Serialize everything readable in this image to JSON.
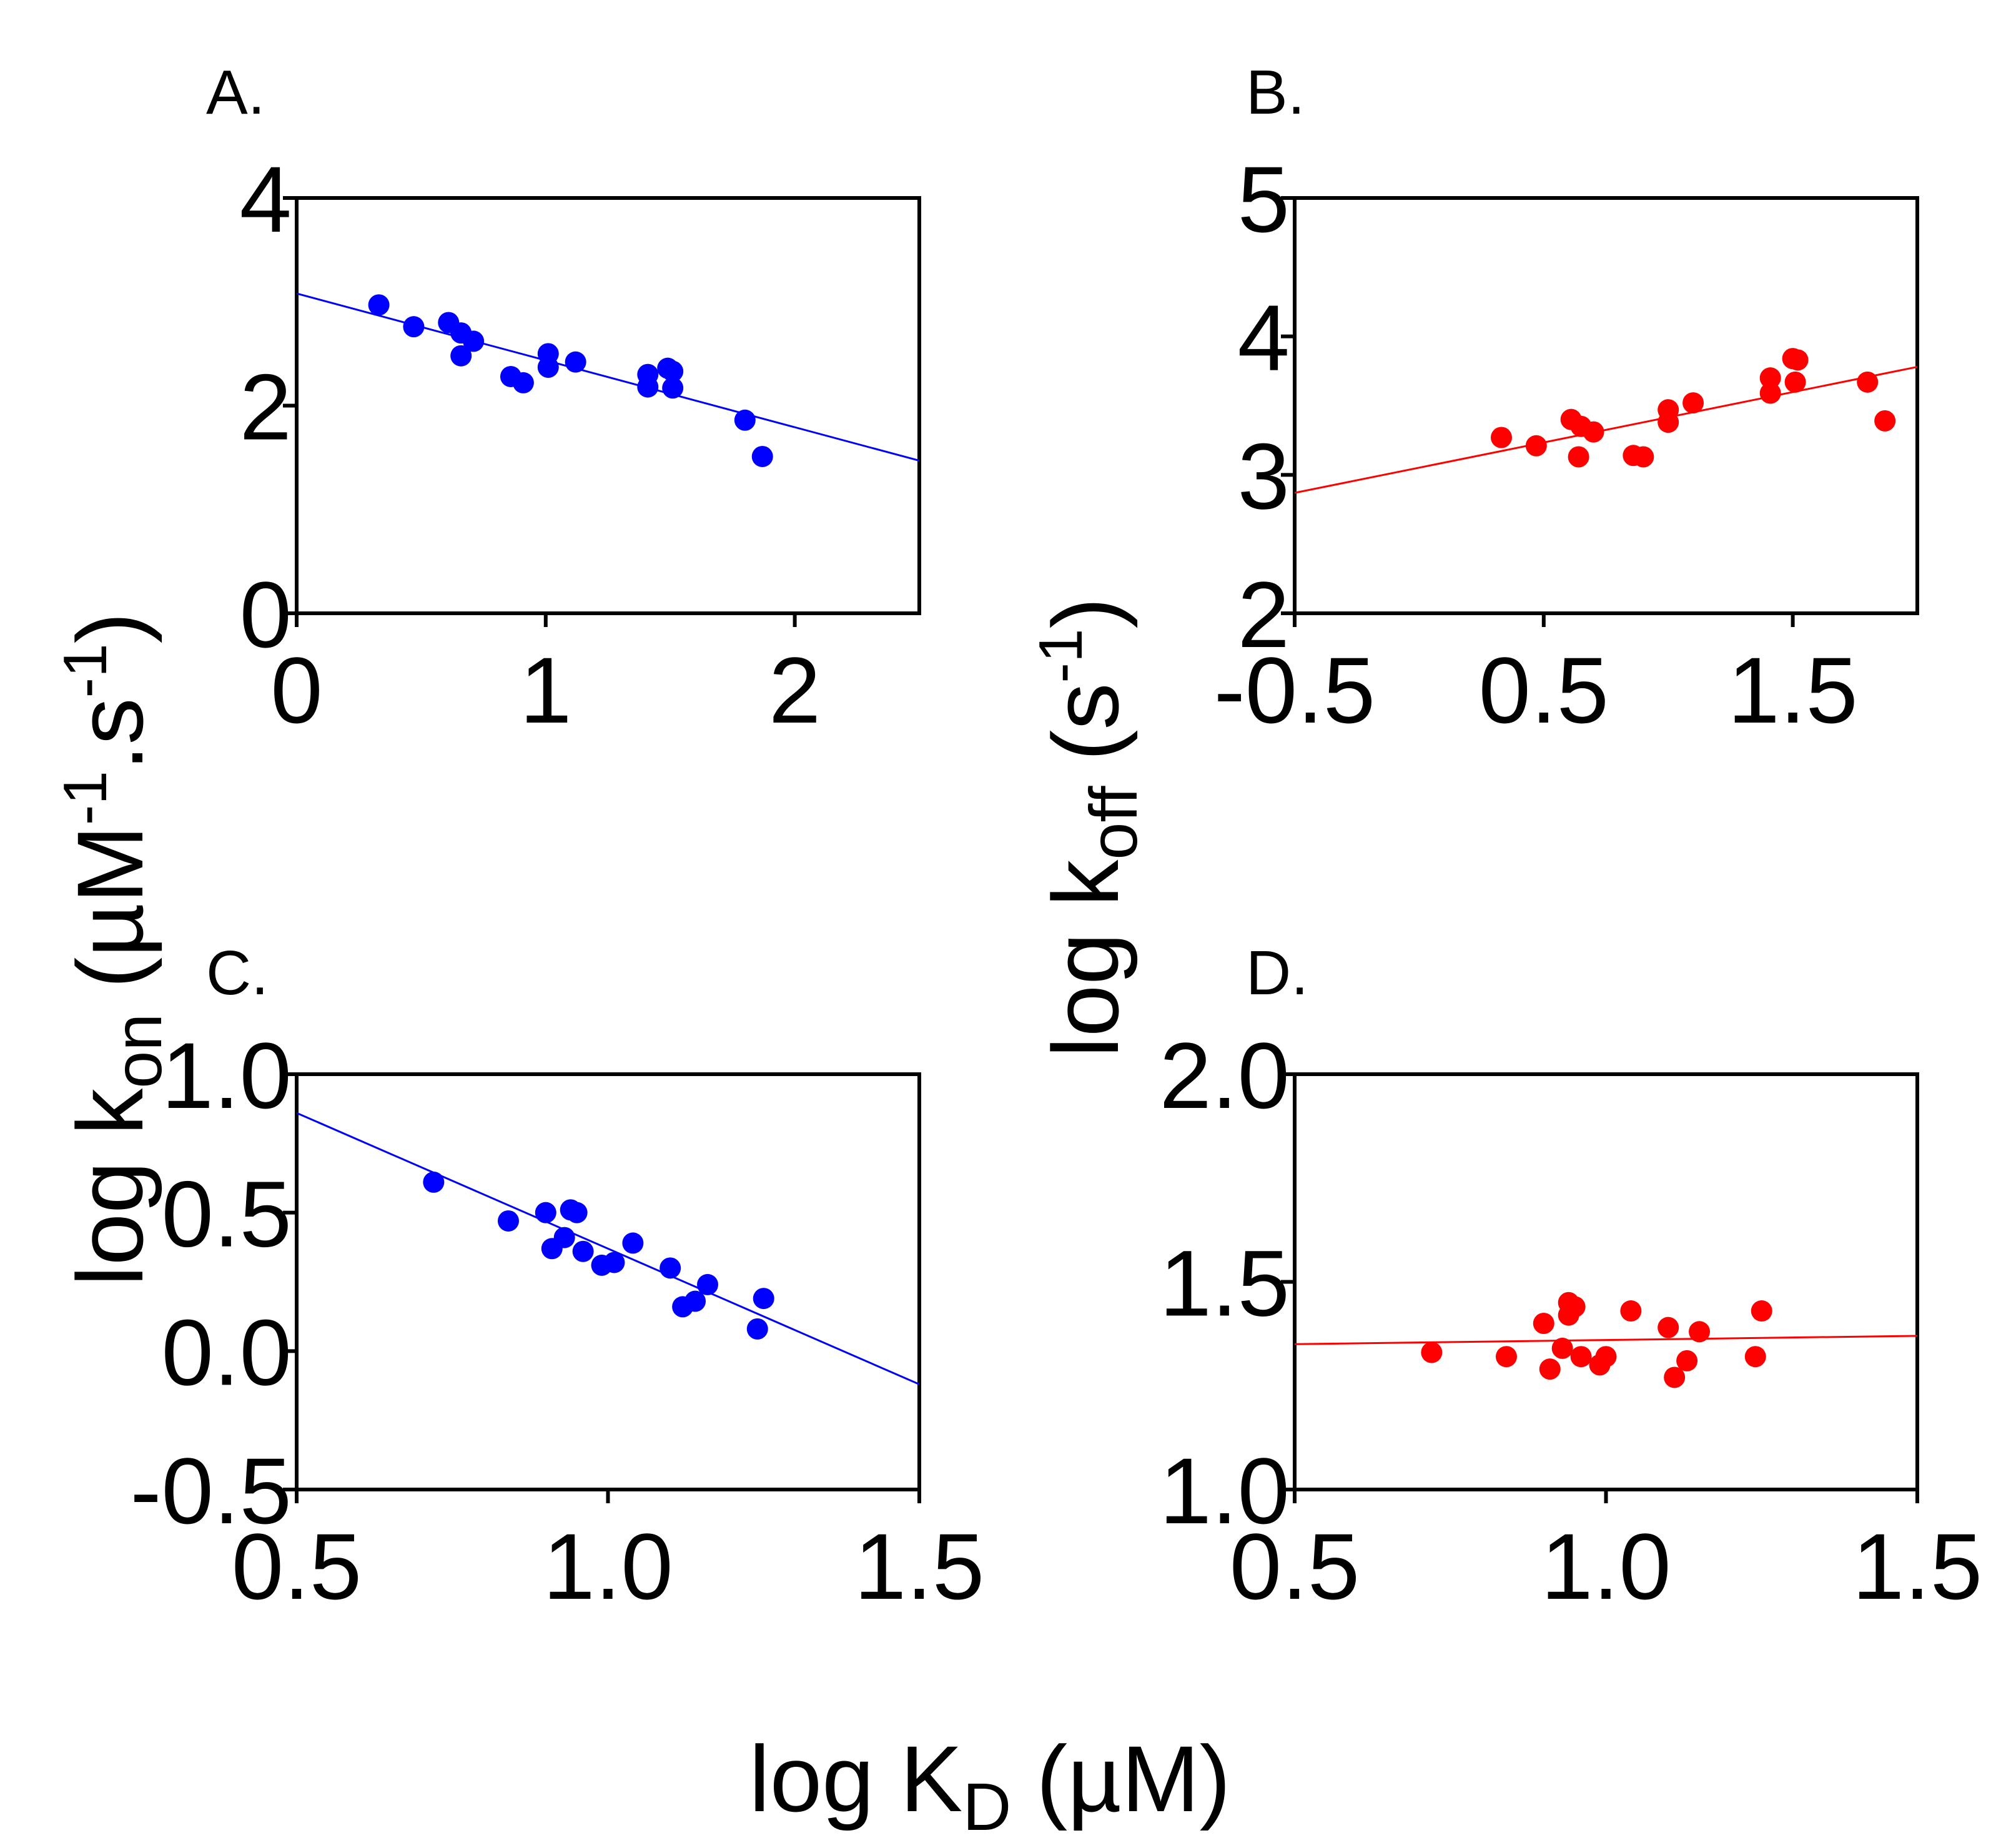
{
  "chart_data": [
    {
      "id": "A",
      "type": "scatter",
      "panel_label": "A.",
      "color": "#0000ff",
      "xlim": [
        0,
        2.5
      ],
      "ylim": [
        0,
        4
      ],
      "xticks": [
        0,
        1,
        2
      ],
      "yticks": [
        0,
        2,
        4
      ],
      "xtick_labels": [
        "0",
        "1",
        "2"
      ],
      "ytick_labels": [
        "0",
        "2",
        "4"
      ],
      "fit_line": {
        "x": [
          0,
          2.5
        ],
        "y": [
          3.08,
          1.47
        ]
      },
      "points": [
        [
          0.33,
          2.97
        ],
        [
          0.47,
          2.76
        ],
        [
          0.61,
          2.8
        ],
        [
          0.66,
          2.7
        ],
        [
          0.66,
          2.48
        ],
        [
          0.71,
          2.62
        ],
        [
          0.86,
          2.28
        ],
        [
          0.91,
          2.22
        ],
        [
          1.01,
          2.5
        ],
        [
          1.01,
          2.37
        ],
        [
          1.12,
          2.42
        ],
        [
          1.41,
          2.3
        ],
        [
          1.41,
          2.18
        ],
        [
          1.49,
          2.36
        ],
        [
          1.51,
          2.17
        ],
        [
          1.51,
          2.33
        ],
        [
          1.8,
          1.86
        ],
        [
          1.87,
          1.51
        ]
      ]
    },
    {
      "id": "B",
      "type": "scatter",
      "panel_label": "B.",
      "color": "#ff0000",
      "xlim": [
        -0.5,
        2.0
      ],
      "ylim": [
        2,
        5
      ],
      "xticks": [
        -0.5,
        0.5,
        1.5
      ],
      "yticks": [
        2,
        3,
        4,
        5
      ],
      "xtick_labels": [
        "-0.5",
        "0.5",
        "1.5"
      ],
      "ytick_labels": [
        "2",
        "3",
        "4",
        "5"
      ],
      "fit_line": {
        "x": [
          -0.5,
          2.0
        ],
        "y": [
          2.87,
          3.78
        ]
      },
      "points": [
        [
          0.33,
          3.27
        ],
        [
          0.47,
          3.21
        ],
        [
          0.61,
          3.4
        ],
        [
          0.64,
          3.13
        ],
        [
          0.65,
          3.35
        ],
        [
          0.7,
          3.31
        ],
        [
          0.86,
          3.14
        ],
        [
          0.9,
          3.13
        ],
        [
          1.0,
          3.38
        ],
        [
          1.0,
          3.47
        ],
        [
          1.1,
          3.52
        ],
        [
          1.41,
          3.7
        ],
        [
          1.41,
          3.59
        ],
        [
          1.5,
          3.84
        ],
        [
          1.52,
          3.83
        ],
        [
          1.51,
          3.67
        ],
        [
          1.8,
          3.67
        ],
        [
          1.87,
          3.39
        ]
      ]
    },
    {
      "id": "C",
      "type": "scatter",
      "panel_label": "C.",
      "color": "#0000ff",
      "xlim": [
        0.5,
        1.5
      ],
      "ylim": [
        -0.5,
        1.0
      ],
      "xticks": [
        0.5,
        1.0,
        1.5
      ],
      "yticks": [
        -0.5,
        0.0,
        0.5,
        1.0
      ],
      "xtick_labels": [
        "0.5",
        "1.0",
        "1.5"
      ],
      "ytick_labels": [
        "-0.5",
        "0.0",
        "0.5",
        "1.0"
      ],
      "fit_line": {
        "x": [
          0.5,
          1.5
        ],
        "y": [
          0.86,
          -0.12
        ]
      },
      "points": [
        [
          0.72,
          0.61
        ],
        [
          0.84,
          0.47
        ],
        [
          0.9,
          0.5
        ],
        [
          0.91,
          0.37
        ],
        [
          0.93,
          0.41
        ],
        [
          0.94,
          0.51
        ],
        [
          0.95,
          0.5
        ],
        [
          0.96,
          0.36
        ],
        [
          0.99,
          0.31
        ],
        [
          1.01,
          0.32
        ],
        [
          1.04,
          0.39
        ],
        [
          1.1,
          0.3
        ],
        [
          1.12,
          0.16
        ],
        [
          1.14,
          0.18
        ],
        [
          1.16,
          0.24
        ],
        [
          1.24,
          0.08
        ],
        [
          1.25,
          0.19
        ]
      ]
    },
    {
      "id": "D",
      "type": "scatter",
      "panel_label": "D.",
      "color": "#ff0000",
      "xlim": [
        0.5,
        1.5
      ],
      "ylim": [
        1.0,
        2.0
      ],
      "xticks": [
        0.5,
        1.0,
        1.5
      ],
      "yticks": [
        1.0,
        1.5,
        2.0
      ],
      "xtick_labels": [
        "0.5",
        "1.0",
        "1.5"
      ],
      "ytick_labels": [
        "1.0",
        "1.5",
        "2.0"
      ],
      "fit_line": {
        "x": [
          0.5,
          1.5
        ],
        "y": [
          1.35,
          1.37
        ]
      },
      "points": [
        [
          0.72,
          1.33
        ],
        [
          0.84,
          1.32
        ],
        [
          0.9,
          1.4
        ],
        [
          0.91,
          1.29
        ],
        [
          0.93,
          1.34
        ],
        [
          0.94,
          1.42
        ],
        [
          0.94,
          1.45
        ],
        [
          0.95,
          1.44
        ],
        [
          0.96,
          1.32
        ],
        [
          0.99,
          1.3
        ],
        [
          1.0,
          1.32
        ],
        [
          1.04,
          1.43
        ],
        [
          1.1,
          1.39
        ],
        [
          1.11,
          1.27
        ],
        [
          1.13,
          1.31
        ],
        [
          1.15,
          1.38
        ],
        [
          1.24,
          1.32
        ],
        [
          1.25,
          1.43
        ]
      ]
    }
  ],
  "labels": {
    "y_left": {
      "main": "log k",
      "sub": "on",
      "open": "(µM",
      "sup1": "-1",
      "mid": ".s",
      "sup2": "-1",
      "close": ")"
    },
    "y_right": {
      "main": "log k",
      "sub": "off",
      "open": "(s",
      "sup": "-1",
      "close": ")"
    },
    "x_common": {
      "main": "log K",
      "sub": "D",
      "rest": "(µM)"
    }
  }
}
